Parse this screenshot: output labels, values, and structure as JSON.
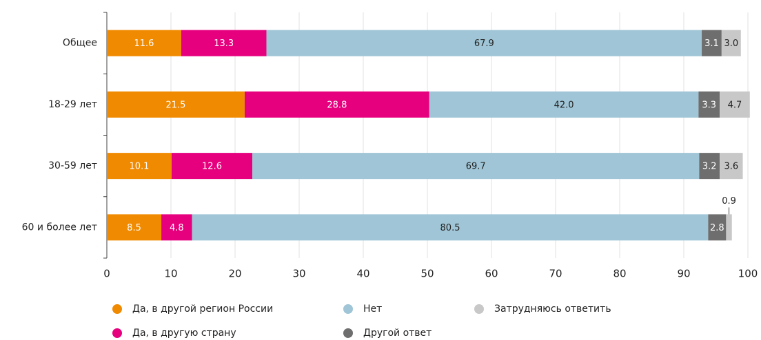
{
  "chart_data": {
    "type": "stacked_barh",
    "categories": [
      "Общее",
      "18-29 лет",
      "30-59 лет",
      "60 и более лет"
    ],
    "series": [
      {
        "name": "Да, в другой регион России",
        "color": "#f08a00",
        "values": [
          11.6,
          21.5,
          10.1,
          8.5
        ],
        "value_labels": [
          "11.6",
          "21.5",
          "10.1",
          "8.5"
        ]
      },
      {
        "name": "Да, в другую страну",
        "color": "#e6007e",
        "values": [
          13.3,
          28.8,
          12.6,
          4.8
        ],
        "value_labels": [
          "13.3",
          "28.8",
          "12.6",
          "4.8"
        ]
      },
      {
        "name": "Нет",
        "color": "#9fc5d6",
        "values": [
          67.9,
          42.0,
          69.7,
          80.5
        ],
        "value_labels": [
          "67.9",
          "42.0",
          "69.7",
          "80.5"
        ]
      },
      {
        "name": "Другой ответ",
        "color": "#6e6e6e",
        "values": [
          3.1,
          3.3,
          3.2,
          2.8
        ],
        "value_labels": [
          "3.1",
          "3.3",
          "3.2",
          "2.8"
        ]
      },
      {
        "name": "Затрудняюсь ответить",
        "color": "#c8c8c8",
        "values": [
          3.0,
          4.7,
          3.6,
          0.9
        ],
        "value_labels": [
          "3.0",
          "4.7",
          "3.6",
          "0.9"
        ]
      }
    ],
    "xlim": [
      0,
      100
    ],
    "xticks": [
      0,
      10,
      20,
      30,
      40,
      50,
      60,
      70,
      80,
      90,
      100
    ],
    "grid": true
  }
}
